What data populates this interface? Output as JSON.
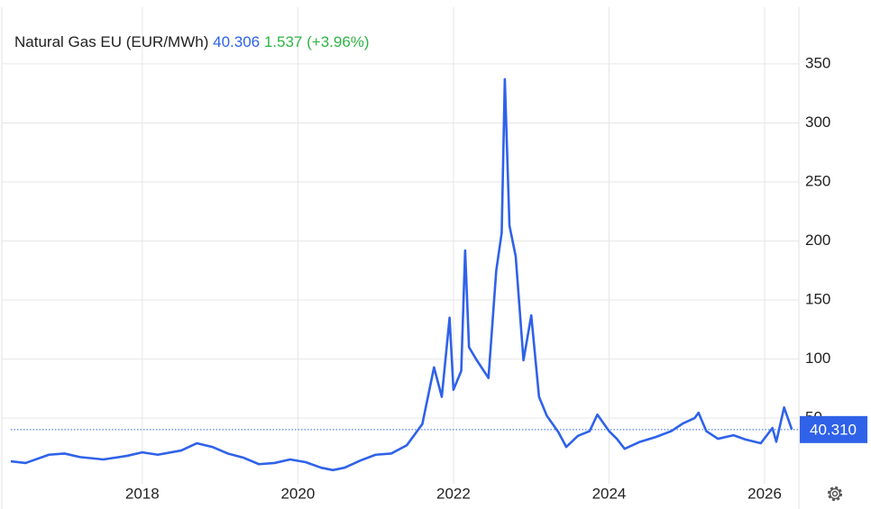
{
  "chart_data": {
    "type": "line",
    "title": "Natural Gas EU (EUR/MWh)",
    "last_price": 40.306,
    "change_label": "1.537 (+3.96%)",
    "price_line": {
      "value": 40.31,
      "label": "40.310"
    },
    "x": [
      2016.31,
      2016.5,
      2016.8,
      2017.0,
      2017.2,
      2017.5,
      2017.8,
      2018.0,
      2018.2,
      2018.5,
      2018.7,
      2018.9,
      2019.1,
      2019.3,
      2019.5,
      2019.7,
      2019.9,
      2020.1,
      2020.3,
      2020.45,
      2020.6,
      2020.8,
      2021.0,
      2021.2,
      2021.4,
      2021.6,
      2021.75,
      2021.85,
      2021.95,
      2022.0,
      2022.1,
      2022.15,
      2022.2,
      2022.3,
      2022.45,
      2022.55,
      2022.62,
      2022.66,
      2022.72,
      2022.8,
      2022.9,
      2023.0,
      2023.1,
      2023.2,
      2023.35,
      2023.45,
      2023.6,
      2023.75,
      2023.85,
      2024.0,
      2024.1,
      2024.2,
      2024.4,
      2024.6,
      2024.8,
      2024.95,
      2025.1,
      2025.15,
      2025.25,
      2025.4,
      2025.6,
      2025.75,
      2025.95,
      2026.1,
      2026.15,
      2026.25,
      2026.35
    ],
    "series": [
      {
        "name": "Natural Gas EU",
        "color": "#2f62e9",
        "values": [
          13.4,
          12,
          19,
          20,
          17,
          15,
          18,
          21,
          19,
          22.6,
          28.7,
          25.6,
          20,
          16.5,
          11,
          12,
          15,
          12.7,
          8,
          6,
          8,
          14,
          19,
          20,
          27,
          45,
          93,
          68,
          135,
          74,
          90,
          192,
          110,
          99,
          84,
          175,
          207,
          337,
          213,
          187,
          99,
          137,
          68,
          52,
          38,
          25.6,
          35,
          39,
          53,
          39,
          32.5,
          24,
          30,
          34,
          39,
          45.5,
          50,
          54.6,
          39,
          32.5,
          35.5,
          32,
          28.7,
          41.6,
          30,
          59,
          40.3
        ]
      }
    ],
    "xlim": [
      2016.31,
      2026.44
    ],
    "xticks": [
      2018,
      2020,
      2022,
      2024,
      2026
    ],
    "ylim": [
      -5.6,
      398
    ],
    "yticks": [
      50,
      100,
      150,
      200,
      250,
      300,
      350
    ],
    "grid": true,
    "change_color": "#2fb344"
  }
}
